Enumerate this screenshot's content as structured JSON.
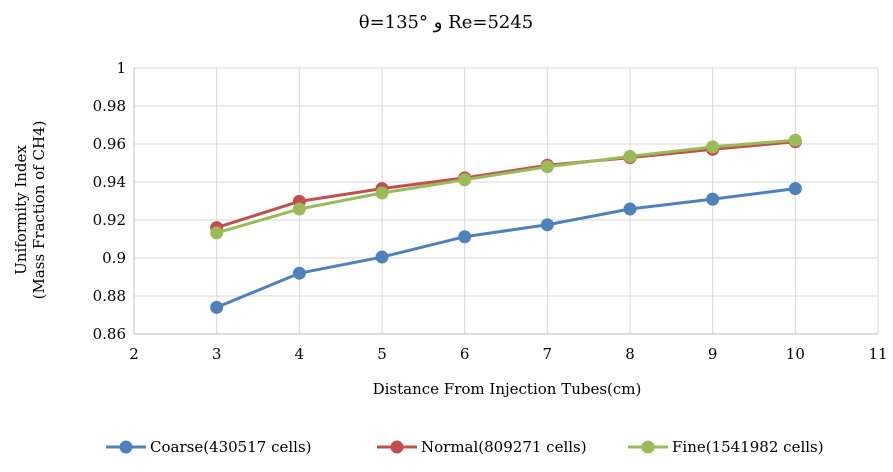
{
  "chart_data": {
    "type": "line",
    "title": "θ=135° و Re=5245",
    "xlabel": "Distance From Injection Tubes(cm)",
    "ylabel_line1": "Uniformity Index",
    "ylabel_line2": "(Mass Fraction of CH4)",
    "xlim": [
      2,
      11
    ],
    "ylim": [
      0.86,
      1
    ],
    "x_ticks": [
      "2",
      "3",
      "4",
      "5",
      "6",
      "7",
      "8",
      "9",
      "10",
      "11"
    ],
    "y_ticks": [
      "0.86",
      "0.88",
      "0.9",
      "0.92",
      "0.94",
      "0.96",
      "0.98",
      "1"
    ],
    "grid": true,
    "legend_position": "bottom",
    "x": [
      3,
      4,
      5,
      6,
      7,
      8,
      9,
      10
    ],
    "series": [
      {
        "name": "Coarse(430517 cells)",
        "color": "#4f81bd",
        "values": [
          0.874,
          0.892,
          0.9005,
          0.9112,
          0.9175,
          0.9258,
          0.931,
          0.9365
        ]
      },
      {
        "name": "Normal(809271 cells)",
        "color": "#c0504d",
        "values": [
          0.916,
          0.9298,
          0.9365,
          0.9422,
          0.9488,
          0.9528,
          0.9572,
          0.9612
        ]
      },
      {
        "name": "Fine(1541982 cells)",
        "color": "#9bbb59",
        "values": [
          0.9132,
          0.9258,
          0.9342,
          0.9412,
          0.948,
          0.9535,
          0.9585,
          0.962
        ]
      }
    ]
  }
}
